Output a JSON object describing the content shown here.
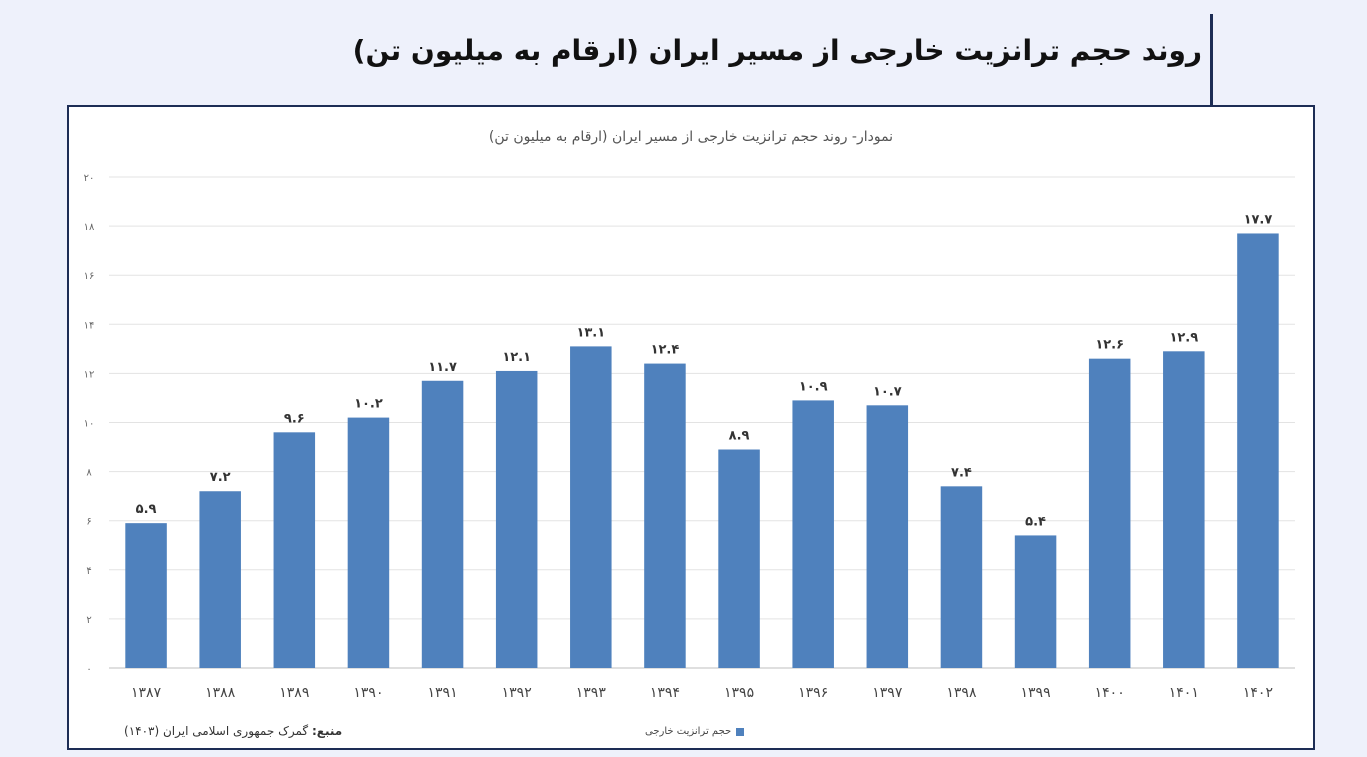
{
  "page": {
    "title": "روند حجم ترانزیت خارجی از مسیر ایران (ارقام به میلیون تن)"
  },
  "chart_data": {
    "type": "bar",
    "title": "نمودار- روند حجم ترانزیت خارجی از مسیر ایران (ارقام به میلیون تن)",
    "xlabel": "",
    "ylabel": "",
    "ylim": [
      0,
      20
    ],
    "yticks": [
      0,
      2,
      4,
      6,
      8,
      10,
      12,
      14,
      16,
      18,
      20
    ],
    "ytick_labels": [
      "۰",
      "۲",
      "۴",
      "۶",
      "۸",
      "۱۰",
      "۱۲",
      "۱۴",
      "۱۶",
      "۱۸",
      "۲۰"
    ],
    "grid": true,
    "legend_position": "bottom",
    "categories": [
      "۱۳۸۷",
      "۱۳۸۸",
      "۱۳۸۹",
      "۱۳۹۰",
      "۱۳۹۱",
      "۱۳۹۲",
      "۱۳۹۳",
      "۱۳۹۴",
      "۱۳۹۵",
      "۱۳۹۶",
      "۱۳۹۷",
      "۱۳۹۸",
      "۱۳۹۹",
      "۱۴۰۰",
      "۱۴۰۱",
      "۱۴۰۲"
    ],
    "series": [
      {
        "name": "حجم ترانزیت خارجی",
        "color": "#4f81bd",
        "values": [
          5.9,
          7.2,
          9.6,
          10.2,
          11.7,
          12.1,
          13.1,
          12.4,
          8.9,
          10.9,
          10.7,
          7.4,
          5.4,
          12.6,
          12.9,
          17.7
        ],
        "data_labels": [
          "۵.۹",
          "۷.۲",
          "۹.۶",
          "۱۰.۲",
          "۱۱.۷",
          "۱۲.۱",
          "۱۳.۱",
          "۱۲.۴",
          "۸.۹",
          "۱۰.۹",
          "۱۰.۷",
          "۷.۴",
          "۵.۴",
          "۱۲.۶",
          "۱۲.۹",
          "۱۷.۷"
        ]
      }
    ]
  },
  "source": {
    "label": "منبع:",
    "text": "گمرک جمهوری اسلامی ایران (۱۴۰۳)"
  }
}
